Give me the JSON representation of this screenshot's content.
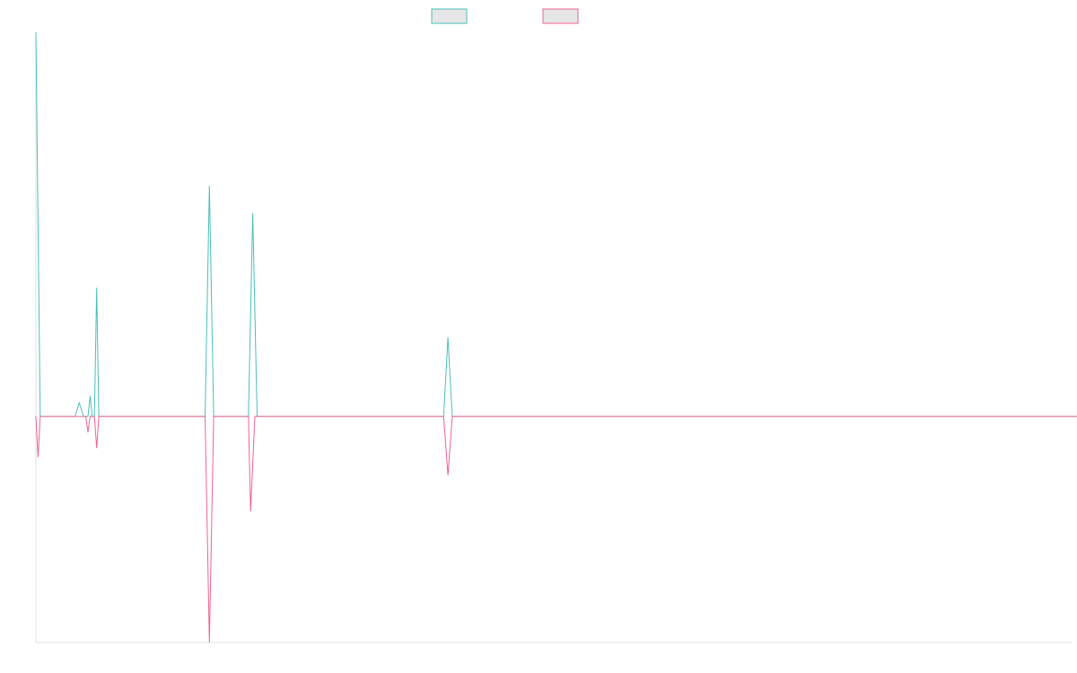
{
  "chart_data": {
    "type": "line",
    "title": "",
    "xlabel": "",
    "ylabel": "",
    "grid": false,
    "legend_position": "top-center",
    "legend_fill": "#e6e6e6",
    "axis_color": "#e0e0e0",
    "ylim": [
      -1,
      1.7
    ],
    "x_count": 240,
    "series": [
      {
        "color": "#4bbfb8",
        "points": [
          {
            "i": 0,
            "v": 1.7
          },
          {
            "i": 1,
            "v": 0
          },
          {
            "i": 9,
            "v": 0
          },
          {
            "i": 10,
            "v": 0.06
          },
          {
            "i": 11,
            "v": 0
          },
          {
            "i": 12,
            "v": 0
          },
          {
            "i": 12.5,
            "v": 0.09
          },
          {
            "i": 13,
            "v": 0
          },
          {
            "i": 13.5,
            "v": 0
          },
          {
            "i": 14,
            "v": 0.57
          },
          {
            "i": 14.5,
            "v": 0
          },
          {
            "i": 39,
            "v": 0
          },
          {
            "i": 40,
            "v": 1.02
          },
          {
            "i": 41,
            "v": 0
          },
          {
            "i": 49,
            "v": 0
          },
          {
            "i": 50,
            "v": 0.9
          },
          {
            "i": 51,
            "v": 0
          },
          {
            "i": 94,
            "v": 0
          },
          {
            "i": 95,
            "v": 0.35
          },
          {
            "i": 96,
            "v": 0
          },
          {
            "i": 240,
            "v": 0
          }
        ]
      },
      {
        "color": "#f0648c",
        "points": [
          {
            "i": 0,
            "v": 0
          },
          {
            "i": 0.5,
            "v": -0.18
          },
          {
            "i": 1,
            "v": 0
          },
          {
            "i": 11.5,
            "v": 0
          },
          {
            "i": 12,
            "v": -0.07
          },
          {
            "i": 12.5,
            "v": 0
          },
          {
            "i": 13.5,
            "v": 0
          },
          {
            "i": 14,
            "v": -0.14
          },
          {
            "i": 14.5,
            "v": 0
          },
          {
            "i": 39,
            "v": 0
          },
          {
            "i": 40,
            "v": -1.0
          },
          {
            "i": 41,
            "v": 0
          },
          {
            "i": 49,
            "v": 0
          },
          {
            "i": 49.5,
            "v": -0.42
          },
          {
            "i": 50.5,
            "v": 0
          },
          {
            "i": 94,
            "v": 0
          },
          {
            "i": 95,
            "v": -0.26
          },
          {
            "i": 96,
            "v": 0
          },
          {
            "i": 240,
            "v": 0
          }
        ]
      }
    ]
  }
}
